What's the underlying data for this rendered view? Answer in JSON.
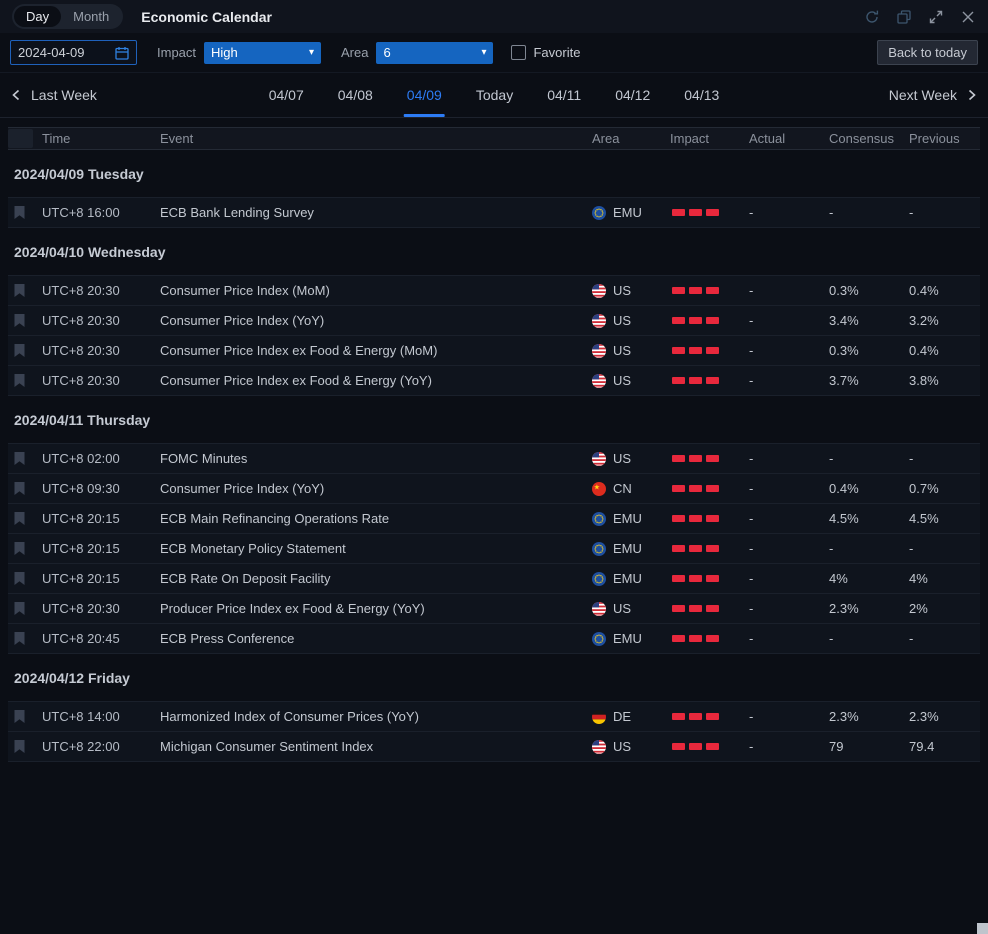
{
  "topbar": {
    "tabs": [
      {
        "label": "Day",
        "active": true
      },
      {
        "label": "Month",
        "active": false
      }
    ],
    "title": "Economic Calendar"
  },
  "filters": {
    "date_value": "2024-04-09",
    "impact_label": "Impact",
    "impact_value": "High",
    "area_label": "Area",
    "area_value": "6",
    "favorite_label": "Favorite",
    "favorite_checked": false,
    "back_to_today_label": "Back to today"
  },
  "week_nav": {
    "prev_label": "Last Week",
    "next_label": "Next Week",
    "days": [
      {
        "label": "04/07",
        "active": false
      },
      {
        "label": "04/08",
        "active": false
      },
      {
        "label": "04/09",
        "active": true
      },
      {
        "label": "Today",
        "active": false
      },
      {
        "label": "04/11",
        "active": false
      },
      {
        "label": "04/12",
        "active": false
      },
      {
        "label": "04/13",
        "active": false
      }
    ]
  },
  "table": {
    "columns": [
      "Time",
      "Event",
      "Area",
      "Impact",
      "Actual",
      "Consensus",
      "Previous"
    ],
    "sections": [
      {
        "date_header": "2024/04/09 Tuesday",
        "rows": [
          {
            "time": "UTC+8 16:00",
            "event": "ECB Bank Lending Survey",
            "area": "EMU",
            "flag": "eu",
            "impact_level": 3,
            "actual": "-",
            "consensus": "-",
            "previous": "-"
          }
        ]
      },
      {
        "date_header": "2024/04/10 Wednesday",
        "rows": [
          {
            "time": "UTC+8 20:30",
            "event": "Consumer Price Index (MoM)",
            "area": "US",
            "flag": "us",
            "impact_level": 3,
            "actual": "-",
            "consensus": "0.3%",
            "previous": "0.4%"
          },
          {
            "time": "UTC+8 20:30",
            "event": "Consumer Price Index (YoY)",
            "area": "US",
            "flag": "us",
            "impact_level": 3,
            "actual": "-",
            "consensus": "3.4%",
            "previous": "3.2%"
          },
          {
            "time": "UTC+8 20:30",
            "event": "Consumer Price Index ex Food & Energy (MoM)",
            "area": "US",
            "flag": "us",
            "impact_level": 3,
            "actual": "-",
            "consensus": "0.3%",
            "previous": "0.4%"
          },
          {
            "time": "UTC+8 20:30",
            "event": "Consumer Price Index ex Food & Energy (YoY)",
            "area": "US",
            "flag": "us",
            "impact_level": 3,
            "actual": "-",
            "consensus": "3.7%",
            "previous": "3.8%"
          }
        ]
      },
      {
        "date_header": "2024/04/11 Thursday",
        "rows": [
          {
            "time": "UTC+8 02:00",
            "event": "FOMC Minutes",
            "area": "US",
            "flag": "us",
            "impact_level": 3,
            "actual": "-",
            "consensus": "-",
            "previous": "-"
          },
          {
            "time": "UTC+8 09:30",
            "event": "Consumer Price Index (YoY)",
            "area": "CN",
            "flag": "cn",
            "impact_level": 3,
            "actual": "-",
            "consensus": "0.4%",
            "previous": "0.7%"
          },
          {
            "time": "UTC+8 20:15",
            "event": "ECB Main Refinancing Operations Rate",
            "area": "EMU",
            "flag": "eu",
            "impact_level": 3,
            "actual": "-",
            "consensus": "4.5%",
            "previous": "4.5%"
          },
          {
            "time": "UTC+8 20:15",
            "event": "ECB Monetary Policy Statement",
            "area": "EMU",
            "flag": "eu",
            "impact_level": 3,
            "actual": "-",
            "consensus": "-",
            "previous": "-"
          },
          {
            "time": "UTC+8 20:15",
            "event": "ECB Rate On Deposit Facility",
            "area": "EMU",
            "flag": "eu",
            "impact_level": 3,
            "actual": "-",
            "consensus": "4%",
            "previous": "4%"
          },
          {
            "time": "UTC+8 20:30",
            "event": "Producer Price Index ex Food & Energy (YoY)",
            "area": "US",
            "flag": "us",
            "impact_level": 3,
            "actual": "-",
            "consensus": "2.3%",
            "previous": "2%"
          },
          {
            "time": "UTC+8 20:45",
            "event": "ECB Press Conference",
            "area": "EMU",
            "flag": "eu",
            "impact_level": 3,
            "actual": "-",
            "consensus": "-",
            "previous": "-"
          }
        ]
      },
      {
        "date_header": "2024/04/12 Friday",
        "rows": [
          {
            "time": "UTC+8 14:00",
            "event": "Harmonized Index of Consumer Prices (YoY)",
            "area": "DE",
            "flag": "de",
            "impact_level": 3,
            "actual": "-",
            "consensus": "2.3%",
            "previous": "2.3%"
          },
          {
            "time": "UTC+8 22:00",
            "event": "Michigan Consumer Sentiment Index",
            "area": "US",
            "flag": "us",
            "impact_level": 3,
            "actual": "-",
            "consensus": "79",
            "previous": "79.4"
          }
        ]
      }
    ]
  },
  "colors": {
    "accent_blue": "#2d7cf5",
    "dropdown_blue": "#1565c0",
    "impact_red": "#e8283c"
  }
}
